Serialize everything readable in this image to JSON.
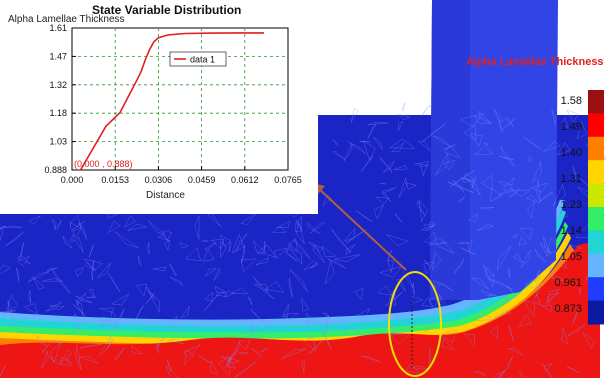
{
  "chart_data": {
    "type": "line",
    "title": "State Variable Distribution",
    "ylabel": "Alpha Lamellae Thickness",
    "xlabel": "Distance",
    "x_ticks": [
      "0.000",
      "0.0153",
      "0.0306",
      "0.0459",
      "0.0612",
      "0.0765"
    ],
    "y_ticks": [
      "1.61",
      "1.47",
      "1.32",
      "1.18",
      "1.03",
      "0.888"
    ],
    "xlim": [
      0,
      0.0765
    ],
    "ylim": [
      0.888,
      1.61
    ],
    "grid": true,
    "legend_position": "top-center",
    "series": [
      {
        "name": "data 1",
        "color": "#e02020",
        "x": [
          0.003,
          0.012,
          0.017,
          0.0235,
          0.0245,
          0.026,
          0.0275,
          0.029,
          0.0306,
          0.034,
          0.04,
          0.05,
          0.06,
          0.068
        ],
        "y": [
          0.888,
          1.11,
          1.18,
          1.36,
          1.39,
          1.45,
          1.5,
          1.54,
          1.56,
          1.575,
          1.582,
          1.584,
          1.585,
          1.585
        ]
      }
    ],
    "annotation": "(0.000 , 0.888)"
  },
  "contour_legend": {
    "title": "Alpha Lamellae Thickness",
    "values": [
      "1.58",
      "1.49",
      "1.40",
      "1.31",
      "1.23",
      "1.14",
      "1.05",
      "0.961",
      "0.873"
    ],
    "colors": [
      "#9b1010",
      "#ff0000",
      "#ff7f00",
      "#ffd400",
      "#cde800",
      "#33ee66",
      "#22d5d5",
      "#64b4ff",
      "#1f3cff",
      "#0b1aa0"
    ]
  },
  "colors": {
    "mesh_dark": "#1b24c4",
    "mesh_light": "#3145e6",
    "hot": "#ee1515",
    "arrow": "#b06040",
    "ellipse": "#f0e000"
  }
}
